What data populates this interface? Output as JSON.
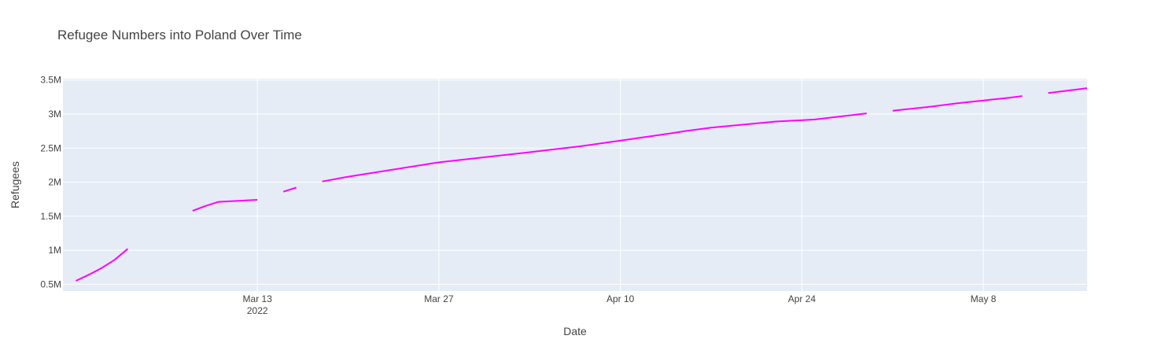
{
  "chart_data": {
    "type": "line",
    "title": "Refugee Numbers into Poland Over Time",
    "xlabel": "Date",
    "ylabel": "Refugees",
    "colors": {
      "line": "#ff00ff",
      "plot_bg": "#e5ecf6",
      "grid": "#ffffff",
      "text": "#444444"
    },
    "x_ticks": [
      {
        "date": "2022-03-13",
        "label": "Mar 13",
        "sublabel": "2022"
      },
      {
        "date": "2022-03-27",
        "label": "Mar 27"
      },
      {
        "date": "2022-04-10",
        "label": "Apr 10"
      },
      {
        "date": "2022-04-24",
        "label": "Apr 24"
      },
      {
        "date": "2022-05-08",
        "label": "May 8"
      }
    ],
    "y_ticks": [
      {
        "value": 500000,
        "label": "0.5M"
      },
      {
        "value": 1000000,
        "label": "1M"
      },
      {
        "value": 1500000,
        "label": "1.5M"
      },
      {
        "value": 2000000,
        "label": "2M"
      },
      {
        "value": 2500000,
        "label": "2.5M"
      },
      {
        "value": 3000000,
        "label": "3M"
      },
      {
        "value": 3500000,
        "label": "3.5M"
      }
    ],
    "xlim": [
      "2022-02-26",
      "2022-05-16"
    ],
    "ylim": [
      400000,
      3520000
    ],
    "grid": true,
    "series": [
      {
        "segments": [
          [
            [
              "2022-02-27",
              550000
            ],
            [
              "2022-02-28",
              640000
            ],
            [
              "2022-03-01",
              740000
            ],
            [
              "2022-03-02",
              860000
            ],
            [
              "2022-03-03",
              1020000
            ]
          ],
          [
            [
              "2022-03-08",
              1580000
            ],
            [
              "2022-03-09",
              1650000
            ],
            [
              "2022-03-10",
              1710000
            ],
            [
              "2022-03-13",
              1740000
            ]
          ],
          [
            [
              "2022-03-15",
              1860000
            ],
            [
              "2022-03-16",
              1920000
            ]
          ],
          [
            [
              "2022-03-18",
              2010000
            ],
            [
              "2022-03-20",
              2080000
            ],
            [
              "2022-03-27",
              2290000
            ],
            [
              "2022-04-03",
              2440000
            ],
            [
              "2022-04-07",
              2530000
            ],
            [
              "2022-04-10",
              2610000
            ],
            [
              "2022-04-14",
              2720000
            ],
            [
              "2022-04-15",
              2750000
            ],
            [
              "2022-04-17",
              2800000
            ],
            [
              "2022-04-22",
              2890000
            ],
            [
              "2022-04-25",
              2920000
            ],
            [
              "2022-04-29",
              3010000
            ]
          ],
          [
            [
              "2022-05-01",
              3050000
            ],
            [
              "2022-05-04",
              3110000
            ],
            [
              "2022-05-06",
              3160000
            ],
            [
              "2022-05-08",
              3200000
            ],
            [
              "2022-05-10",
              3240000
            ],
            [
              "2022-05-11",
              3265000
            ]
          ],
          [
            [
              "2022-05-13",
              3310000
            ],
            [
              "2022-05-16",
              3380000
            ]
          ]
        ]
      }
    ]
  }
}
